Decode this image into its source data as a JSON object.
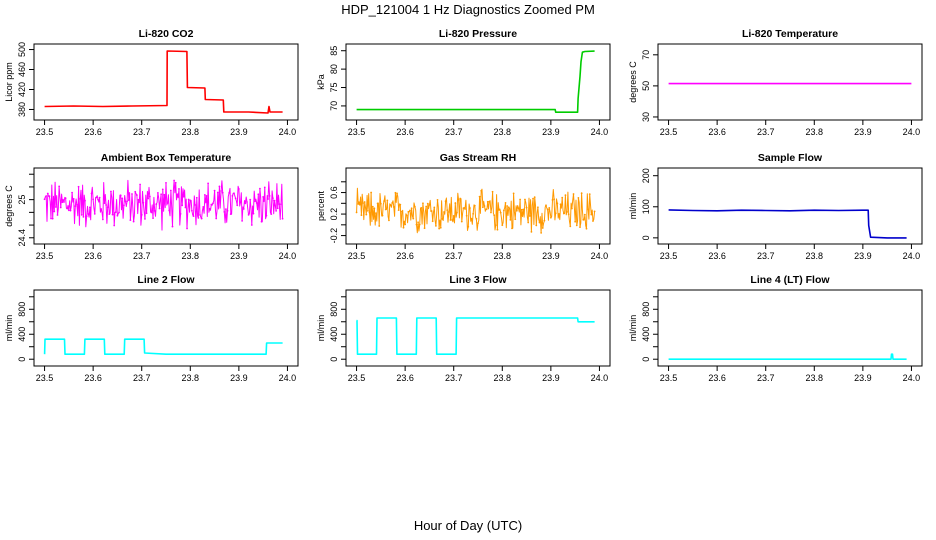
{
  "page": {
    "title": "HDP_121004  1 Hz Diagnostics Zoomed PM",
    "xlabel": "Hour of Day (UTC)"
  },
  "chart_data": [
    {
      "type": "line",
      "title": "Li-820 CO2",
      "ylabel": "Licor ppm",
      "color": "#ff0000",
      "xlim": [
        23.5,
        24.0
      ],
      "ylim": [
        365,
        505
      ],
      "yticks": [
        380,
        420,
        460,
        500
      ],
      "xticks": [
        23.5,
        23.6,
        23.7,
        23.8,
        23.9,
        24.0
      ],
      "tick_labels": [
        "23.5",
        "23.6",
        "23.7",
        "23.8",
        "23.9",
        "24.0"
      ],
      "x": [
        23.5,
        23.56,
        23.62,
        23.68,
        23.752,
        23.7525,
        23.793,
        23.794,
        23.83,
        23.831,
        23.868,
        23.869,
        23.92,
        23.96,
        23.962,
        23.964,
        23.99
      ],
      "y": [
        386,
        387,
        386,
        387,
        388,
        497,
        496,
        424,
        423,
        400,
        399,
        375,
        375,
        373,
        386,
        375,
        375
      ]
    },
    {
      "type": "line",
      "title": "Li-820 Pressure",
      "ylabel": "kPa",
      "color": "#00cc00",
      "xlim": [
        23.5,
        24.0
      ],
      "ylim": [
        67,
        86
      ],
      "yticks": [
        70,
        75,
        80,
        85
      ],
      "xticks": [
        23.5,
        23.6,
        23.7,
        23.8,
        23.9,
        24.0
      ],
      "tick_labels": [
        "23.5",
        "23.6",
        "23.7",
        "23.8",
        "23.9",
        "24.0"
      ],
      "x": [
        23.5,
        23.6,
        23.7,
        23.8,
        23.909,
        23.91,
        23.955,
        23.956,
        23.96,
        23.962,
        23.965,
        23.97,
        23.99
      ],
      "y": [
        69.0,
        69.0,
        69.0,
        69.0,
        69.0,
        68.3,
        68.3,
        72,
        78,
        82,
        84.6,
        84.8,
        84.9
      ]
    },
    {
      "type": "line",
      "title": "Li-820 Temperature",
      "ylabel": "degrees C",
      "color": "#ff00ff",
      "xlim": [
        23.5,
        24.0
      ],
      "ylim": [
        30,
        75
      ],
      "yticks": [
        30,
        50,
        70
      ],
      "xticks": [
        23.5,
        23.6,
        23.7,
        23.8,
        23.9,
        24.0
      ],
      "tick_labels": [
        "23.5",
        "23.6",
        "23.7",
        "23.8",
        "23.9",
        "24.0"
      ],
      "x": [
        23.5,
        24.0
      ],
      "y": [
        51.5,
        51.5
      ]
    },
    {
      "type": "line",
      "title": "Ambient Box Temperature",
      "ylabel": "degrees C",
      "color": "#ff00ff",
      "xlim": [
        23.5,
        24.0
      ],
      "ylim": [
        24.35,
        25.45
      ],
      "yticks": [
        24.4,
        25.0
      ],
      "yticks_unlabeled": [
        24.6,
        24.8,
        25.2,
        25.4
      ],
      "xticks": [
        23.5,
        23.6,
        23.7,
        23.8,
        23.9,
        24.0
      ],
      "tick_labels": [
        "23.5",
        "23.6",
        "23.7",
        "23.8",
        "23.9",
        "24.0"
      ],
      "noise": {
        "x_start": 23.5,
        "x_end": 24.0,
        "center": 24.93,
        "amplitude": 0.45
      }
    },
    {
      "type": "line",
      "title": "Gas Stream RH",
      "ylabel": "percent",
      "color": "#ff9900",
      "xlim": [
        23.5,
        24.0
      ],
      "ylim": [
        -0.3,
        1.0
      ],
      "yticks": [
        -0.2,
        0.2,
        0.6
      ],
      "yticks_unlabeled": [
        0.0,
        0.4,
        0.8
      ],
      "xticks": [
        23.5,
        23.6,
        23.7,
        23.8,
        23.9,
        24.0
      ],
      "tick_labels": [
        "23.5",
        "23.6",
        "23.7",
        "23.8",
        "23.9",
        "24.0"
      ],
      "noise": {
        "x_start": 23.5,
        "x_end": 24.0,
        "center": 0.25,
        "amplitude": 0.45
      }
    },
    {
      "type": "line",
      "title": "Sample Flow",
      "ylabel": "ml/min",
      "color": "#0000cc",
      "xlim": [
        23.5,
        24.0
      ],
      "ylim": [
        -10,
        215
      ],
      "yticks": [
        0,
        100,
        200
      ],
      "xticks": [
        23.5,
        23.6,
        23.7,
        23.8,
        23.9,
        24.0
      ],
      "tick_labels": [
        "23.5",
        "23.6",
        "23.7",
        "23.8",
        "23.9",
        "24.0"
      ],
      "x": [
        23.5,
        23.55,
        23.6,
        23.65,
        23.7,
        23.75,
        23.8,
        23.85,
        23.9,
        23.911,
        23.912,
        23.916,
        23.95,
        23.99
      ],
      "y": [
        90,
        88,
        87,
        89,
        88,
        87,
        89,
        88,
        89,
        89,
        40,
        2,
        0,
        0
      ]
    },
    {
      "type": "line",
      "title": "Line 2 Flow",
      "ylabel": "ml/min",
      "color": "#00ffff",
      "xlim": [
        23.5,
        24.0
      ],
      "ylim": [
        -60,
        1060
      ],
      "yticks": [
        0,
        400,
        800
      ],
      "yticks_unlabeled": [
        200,
        600,
        1000
      ],
      "xticks": [
        23.5,
        23.6,
        23.7,
        23.8,
        23.9,
        24.0
      ],
      "tick_labels": [
        "23.5",
        "23.6",
        "23.7",
        "23.8",
        "23.9",
        "24.0"
      ],
      "x": [
        23.5,
        23.501,
        23.541,
        23.542,
        23.582,
        23.583,
        23.623,
        23.624,
        23.664,
        23.665,
        23.705,
        23.706,
        23.75,
        23.8,
        23.9,
        23.956,
        23.957,
        23.99
      ],
      "y": [
        80,
        320,
        320,
        80,
        80,
        320,
        320,
        80,
        80,
        320,
        320,
        100,
        80,
        80,
        80,
        80,
        260,
        260
      ]
    },
    {
      "type": "line",
      "title": "Line 3 Flow",
      "ylabel": "ml/min",
      "color": "#00ffff",
      "xlim": [
        23.5,
        24.0
      ],
      "ylim": [
        -60,
        1060
      ],
      "yticks": [
        0,
        400,
        800
      ],
      "yticks_unlabeled": [
        200,
        600,
        1000
      ],
      "xticks": [
        23.5,
        23.6,
        23.7,
        23.8,
        23.9,
        24.0
      ],
      "tick_labels": [
        "23.5",
        "23.6",
        "23.7",
        "23.8",
        "23.9",
        "24.0"
      ],
      "x": [
        23.5,
        23.501,
        23.502,
        23.541,
        23.542,
        23.582,
        23.583,
        23.623,
        23.624,
        23.664,
        23.665,
        23.705,
        23.706,
        23.75,
        23.85,
        23.955,
        23.956,
        23.99
      ],
      "y": [
        620,
        620,
        80,
        80,
        660,
        660,
        80,
        80,
        660,
        660,
        80,
        80,
        660,
        660,
        660,
        660,
        600,
        600
      ]
    },
    {
      "type": "line",
      "title": "Line 4 (LT) Flow",
      "ylabel": "ml/min",
      "color": "#00ffff",
      "xlim": [
        23.5,
        24.0
      ],
      "ylim": [
        -60,
        1060
      ],
      "yticks": [
        0,
        400,
        800
      ],
      "yticks_unlabeled": [
        200,
        600,
        1000
      ],
      "xticks": [
        23.5,
        23.6,
        23.7,
        23.8,
        23.9,
        24.0
      ],
      "tick_labels": [
        "23.5",
        "23.6",
        "23.7",
        "23.8",
        "23.9",
        "24.0"
      ],
      "x": [
        23.5,
        23.958,
        23.959,
        23.961,
        23.962,
        23.99
      ],
      "y": [
        0,
        0,
        80,
        80,
        0,
        0
      ]
    }
  ]
}
